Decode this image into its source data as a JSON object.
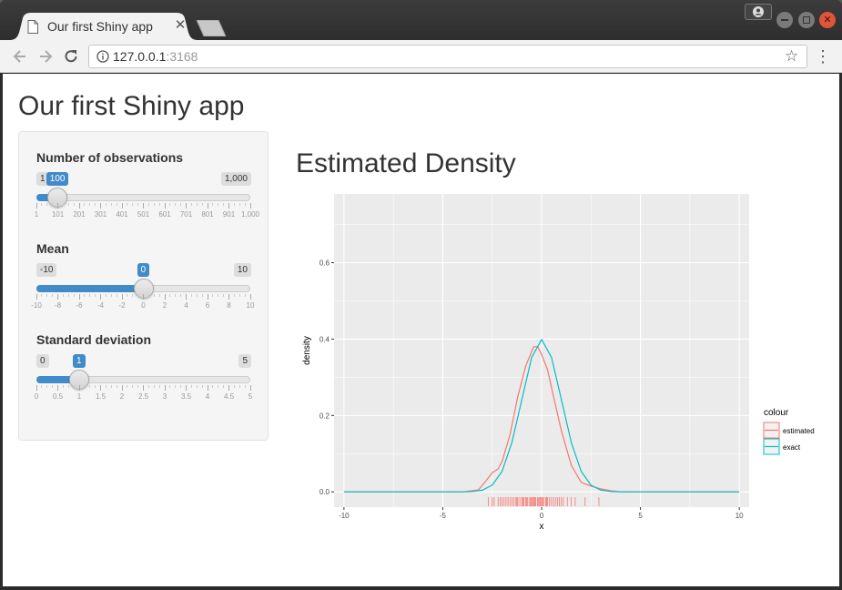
{
  "browser": {
    "tab_title": "Our first Shiny app",
    "url_host": "127.0.0.1",
    "url_port": ":3168"
  },
  "icons": [
    "doc-icon",
    "close-icon",
    "back-icon",
    "forward-icon",
    "reload-icon",
    "info-icon",
    "star-icon",
    "menu-icon",
    "profile-icon"
  ],
  "app": {
    "title": "Our first Shiny app",
    "sliders": [
      {
        "label": "Number of observations",
        "min_label": "1",
        "max_label": "1,000",
        "value_label": "100",
        "value": 100,
        "min": 1,
        "max": 1000,
        "ticks": [
          "1",
          "101",
          "201",
          "301",
          "401",
          "501",
          "601",
          "701",
          "801",
          "901",
          "1,000"
        ]
      },
      {
        "label": "Mean",
        "min_label": "-10",
        "max_label": "10",
        "value_label": "0",
        "value": 0,
        "min": -10,
        "max": 10,
        "ticks": [
          "-10",
          "-8",
          "-6",
          "-4",
          "-2",
          "0",
          "2",
          "4",
          "6",
          "8",
          "10"
        ]
      },
      {
        "label": "Standard deviation",
        "min_label": "0",
        "max_label": "5",
        "value_label": "1",
        "value": 1,
        "min": 0,
        "max": 5,
        "ticks": [
          "0",
          "0.5",
          "1",
          "1.5",
          "2",
          "2.5",
          "3",
          "3.5",
          "4",
          "4.5",
          "5"
        ]
      }
    ],
    "plot_title": "Estimated Density"
  },
  "colors": {
    "accent": "#428bca",
    "estimated": "#F8766D",
    "exact": "#00BFC4",
    "panel": "#EBEBEB"
  },
  "chart_data": {
    "type": "line",
    "title": "",
    "xlabel": "x",
    "ylabel": "density",
    "xlim": [
      -10.5,
      10.5
    ],
    "ylim": [
      -0.04,
      0.78
    ],
    "x_ticks": [
      "-10",
      "-5",
      "0",
      "5",
      "10"
    ],
    "y_ticks": [
      "0.0",
      "0.2",
      "0.4",
      "0.6"
    ],
    "legend_title": "colour",
    "legend_position": "right",
    "series": [
      {
        "name": "estimated",
        "x": [
          -10,
          -4,
          -3.2,
          -2.8,
          -2.5,
          -2.2,
          -2.0,
          -1.6,
          -1.2,
          -0.8,
          -0.4,
          -0.2,
          0,
          0.3,
          0.6,
          1.0,
          1.5,
          2.0,
          2.5,
          3.0,
          3.5,
          4,
          10
        ],
        "values": [
          0,
          0,
          0.005,
          0.03,
          0.05,
          0.06,
          0.08,
          0.15,
          0.25,
          0.33,
          0.38,
          0.38,
          0.36,
          0.32,
          0.25,
          0.16,
          0.07,
          0.025,
          0.015,
          0.008,
          0.003,
          0,
          0
        ]
      },
      {
        "name": "exact",
        "x": [
          -10,
          -4,
          -3.5,
          -3,
          -2.5,
          -2,
          -1.5,
          -1,
          -0.5,
          0,
          0.5,
          1,
          1.5,
          2,
          2.5,
          3,
          3.5,
          4,
          10
        ],
        "values": [
          0,
          0.0001,
          0.0009,
          0.0044,
          0.0175,
          0.054,
          0.1295,
          0.242,
          0.352,
          0.399,
          0.352,
          0.242,
          0.1295,
          0.054,
          0.0175,
          0.0044,
          0.0009,
          0.0001,
          0
        ]
      }
    ],
    "rug": [
      -2.7,
      -2.5,
      -2.4,
      -2.2,
      -2.1,
      -2.0,
      -1.9,
      -1.8,
      -1.7,
      -1.6,
      -1.5,
      -1.4,
      -1.3,
      -1.25,
      -1.2,
      -1.1,
      -1.0,
      -0.95,
      -0.9,
      -0.8,
      -0.75,
      -0.7,
      -0.6,
      -0.55,
      -0.5,
      -0.45,
      -0.4,
      -0.35,
      -0.3,
      -0.2,
      -0.15,
      -0.1,
      -0.05,
      0.0,
      0.05,
      0.1,
      0.2,
      0.25,
      0.3,
      0.4,
      0.5,
      0.6,
      0.7,
      0.8,
      0.9,
      1.0,
      1.1,
      1.3,
      1.5,
      1.7,
      2.2,
      2.9
    ]
  }
}
